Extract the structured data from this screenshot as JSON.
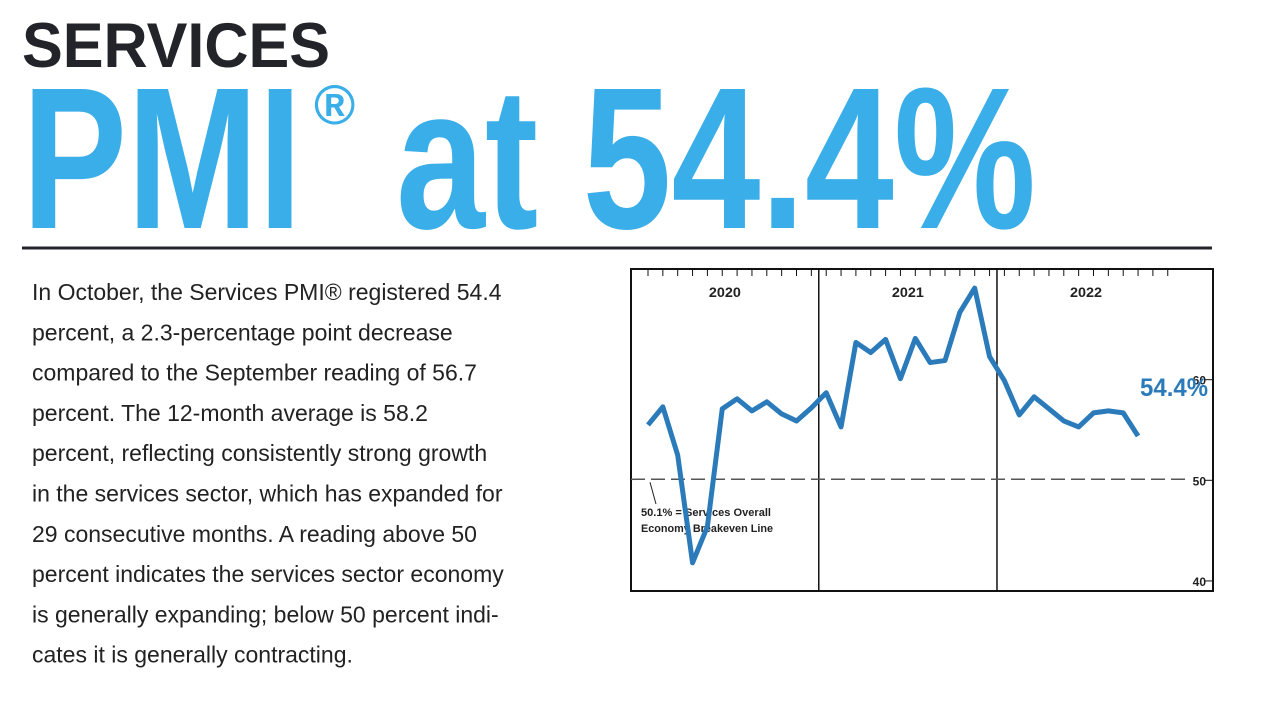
{
  "header": {
    "kicker": "SERVICES",
    "headline_main": "PMI",
    "headline_mark": "®",
    "headline_rest": "at 54.4%"
  },
  "body_lines": [
    "In October, the Services PMI® registered 54.4",
    "percent, a 2.3-percentage point decrease",
    "compared to the September reading of 56.7",
    "percent. The 12-month average is 58.2",
    "percent, reflecting consistently strong growth",
    "in the services sector, which has expanded for",
    "29 consecutive months. A reading above 50",
    "percent indicates the services sector economy",
    "is generally expanding; below 50 percent indi-",
    "cates it is generally contracting."
  ],
  "chart_data": {
    "type": "line",
    "years": [
      "2020",
      "2021",
      "2022"
    ],
    "series": [
      {
        "color": "#2b7bba",
        "values": [
          55.5,
          57.3,
          52.5,
          41.8,
          45.4,
          57.1,
          58.1,
          56.9,
          57.8,
          56.6,
          55.9,
          57.2,
          58.7,
          55.3,
          63.7,
          62.7,
          64.0,
          60.1,
          64.1,
          61.7,
          61.9,
          66.7,
          69.1,
          62.3,
          59.9,
          56.5,
          58.3,
          57.1,
          55.9,
          55.3,
          56.7,
          56.9,
          56.7,
          54.4
        ],
        "value_labels": [
          null,
          null,
          null,
          null,
          null,
          null,
          null,
          null,
          null,
          null,
          null,
          null,
          null,
          null,
          null,
          null,
          null,
          null,
          null,
          null,
          null,
          null,
          null,
          null,
          null,
          null,
          null,
          null,
          null,
          null,
          null,
          null,
          null,
          "54.4%"
        ]
      }
    ],
    "ylim": [
      39,
      71
    ],
    "yticks": [
      40,
      50,
      60
    ],
    "reference_line": {
      "value": 50.1,
      "label_lines": [
        "50.1% = Services Overall",
        "Economy Breakeven Line"
      ]
    }
  }
}
